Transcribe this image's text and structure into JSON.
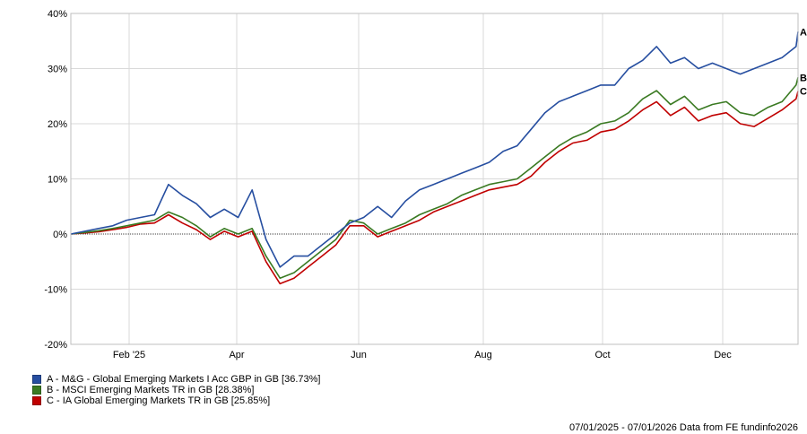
{
  "chart_data": {
    "type": "line",
    "ylim": [
      -20,
      40
    ],
    "y_ticks": [
      "40%",
      "30%",
      "20%",
      "10%",
      "0%",
      "-10%",
      "-20%"
    ],
    "x_ticks": [
      "Feb '25",
      "Apr",
      "Jun",
      "Aug",
      "Oct",
      "Dec"
    ],
    "x": [
      0,
      7,
      14,
      21,
      28,
      35,
      42,
      49,
      56,
      63,
      70,
      77,
      84,
      91,
      98,
      105,
      112,
      119,
      126,
      133,
      140,
      147,
      154,
      161,
      168,
      175,
      182,
      189,
      196,
      203,
      210,
      217,
      224,
      231,
      238,
      245,
      252,
      259,
      266,
      273,
      280,
      287,
      294,
      301,
      308,
      315,
      322,
      329,
      336,
      343,
      350,
      357,
      364,
      365
    ],
    "series": [
      {
        "marker": "A",
        "color": "#264ea0",
        "name": "A - M&G - Global Emerging Markets I Acc GBP in GB [36.73%]",
        "values": [
          0,
          0.5,
          1,
          1.5,
          2.5,
          3,
          3.5,
          9,
          7,
          5.5,
          3,
          4.5,
          3,
          8,
          -1,
          -6,
          -4,
          -4,
          -2,
          0,
          2,
          3,
          5,
          3,
          6,
          8,
          9,
          10,
          11,
          12,
          13,
          15,
          16,
          19,
          22,
          24,
          25,
          26,
          27,
          27,
          30,
          31.5,
          34,
          31,
          32,
          30,
          31,
          30,
          29,
          30,
          31,
          32,
          34,
          36.7
        ]
      },
      {
        "marker": "B",
        "color": "#3a7a22",
        "name": "B - MSCI Emerging Markets TR in GB [28.38%]",
        "values": [
          0,
          0.3,
          0.6,
          1,
          1.5,
          2,
          2.5,
          4,
          3,
          1.5,
          -0.5,
          1,
          0,
          1,
          -4,
          -8,
          -7,
          -5,
          -3,
          -1,
          2.5,
          2,
          0,
          1,
          2,
          3.5,
          4.5,
          5.5,
          7,
          8,
          9,
          9.5,
          10,
          12,
          14,
          16,
          17.5,
          18.5,
          20,
          20.5,
          22,
          24.5,
          26,
          23.5,
          25,
          22.5,
          23.5,
          24,
          22,
          21.5,
          23,
          24,
          27,
          28.4
        ]
      },
      {
        "marker": "C",
        "color": "#c00000",
        "name": "C - IA Global Emerging Markets TR in GB [25.85%]",
        "values": [
          0,
          0.2,
          0.4,
          0.8,
          1.2,
          1.8,
          2,
          3.5,
          2,
          0.8,
          -1,
          0.5,
          -0.5,
          0.5,
          -5,
          -9,
          -8,
          -6,
          -4,
          -2,
          1.5,
          1.5,
          -0.5,
          0.5,
          1.5,
          2.5,
          4,
          5,
          6,
          7,
          8,
          8.5,
          9,
          10.5,
          13,
          15,
          16.5,
          17,
          18.5,
          19,
          20.5,
          22.5,
          24,
          21.5,
          23,
          20.5,
          21.5,
          22,
          20,
          19.5,
          21,
          22.5,
          24.5,
          25.9
        ]
      }
    ]
  },
  "legend": [
    {
      "label": "A - M&G - Global Emerging Markets I Acc GBP in GB [36.73%]",
      "color": "#264ea0"
    },
    {
      "label": "B - MSCI Emerging Markets TR in GB [28.38%]",
      "color": "#3a7a22"
    },
    {
      "label": "C - IA Global Emerging Markets TR in GB [25.85%]",
      "color": "#c00000"
    }
  ],
  "footer": "07/01/2025 - 07/01/2026 Data from FE fundinfo2026"
}
